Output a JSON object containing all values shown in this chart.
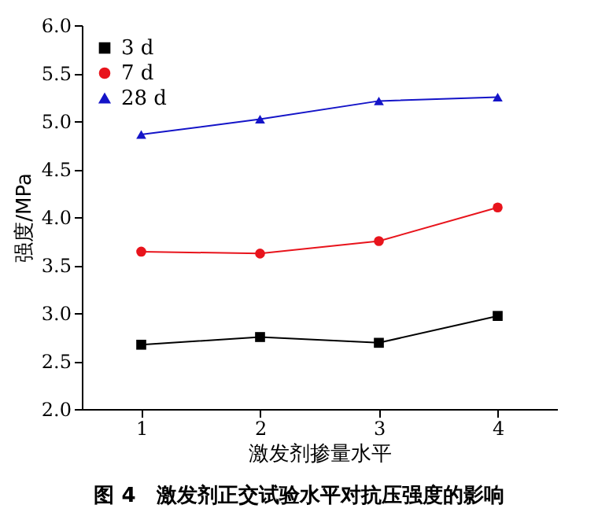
{
  "chart_data": {
    "type": "line",
    "xlabel": "激发剂掺量水平",
    "ylabel": "强度/MPa",
    "x": [
      1,
      2,
      3,
      4
    ],
    "series": [
      {
        "name": "3 d",
        "color": "#000000",
        "marker": "square",
        "values": [
          2.67,
          2.75,
          2.69,
          2.97
        ]
      },
      {
        "name": "7 d",
        "color": "#e8141c",
        "marker": "circle",
        "values": [
          3.64,
          3.62,
          3.75,
          4.1
        ]
      },
      {
        "name": "28 d",
        "color": "#1414c8",
        "marker": "triangle",
        "values": [
          4.86,
          5.02,
          5.21,
          5.25
        ]
      }
    ],
    "xlim": [
      0.5,
      4.5
    ],
    "xticks": [
      1,
      2,
      3,
      4
    ],
    "ylim": [
      2.0,
      6.0
    ],
    "yticks": [
      {
        "value": 2,
        "label": "2.0"
      },
      {
        "value": 2.5,
        "label": "2.5"
      },
      {
        "value": 3,
        "label": "3.0"
      },
      {
        "value": 3.5,
        "label": "3.5"
      },
      {
        "value": 4,
        "label": "4.0"
      },
      {
        "value": 4.5,
        "label": "4.5"
      },
      {
        "value": 5,
        "label": "5.0"
      },
      {
        "value": 5.5,
        "label": "5.5"
      },
      {
        "value": 6,
        "label": "6.0"
      }
    ],
    "legend": "top left",
    "grid": false,
    "line_style": "solid",
    "annotations": [
      "图 4　激发剂正交试验水平对抗压强度的影响"
    ]
  }
}
